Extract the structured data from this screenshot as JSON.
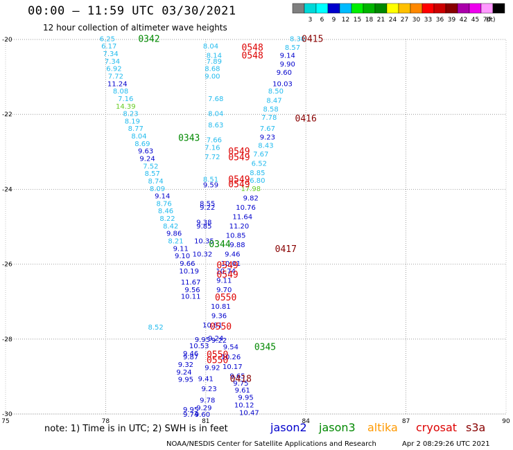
{
  "header": {
    "title": "00:00 – 11:59 UTC 03/30/2021",
    "subtitle": "12 hour collection of altimeter wave heights"
  },
  "footer": {
    "note": "note: 1) Time is in UTC; 2) SWH is in feet",
    "credit": "NOAA/NESDIS Center for Satellite Applications and Research",
    "generated": "Apr  2 08:29:26 UTC 2021"
  },
  "legend_scale": {
    "colors": [
      "#7f7f7f",
      "#00d8d8",
      "#00ffff",
      "#0000cc",
      "#00bbff",
      "#00ee00",
      "#00b400",
      "#008800",
      "#ffff00",
      "#ffc000",
      "#ff8800",
      "#ff0000",
      "#cc0000",
      "#880000",
      "#aa00aa",
      "#ee00ee",
      "#ff99ff",
      "#000000"
    ],
    "labels": [
      "3",
      "6",
      "9",
      "12",
      "15",
      "18",
      "21",
      "24",
      "27",
      "30",
      "33",
      "36",
      "39",
      "42",
      "45",
      "70"
    ],
    "unit": "(ft)"
  },
  "satellites": [
    {
      "name": "jason2",
      "color": "#0000cc"
    },
    {
      "name": "jason3",
      "color": "#008800"
    },
    {
      "name": "altika",
      "color": "#ff9900"
    },
    {
      "name": "cryosat",
      "color": "#dd0000"
    },
    {
      "name": "s3a",
      "color": "#880000"
    }
  ],
  "chart_data": {
    "type": "scatter",
    "title": "00:00 – 11:59 UTC 03/30/2021",
    "subtitle": "12 hour collection of altimeter wave heights",
    "x_ticks": [
      75,
      78,
      81,
      84,
      87,
      90
    ],
    "y_ticks": [
      -20,
      -22,
      -24,
      -26,
      -28,
      -30
    ],
    "xlim": [
      75,
      90
    ],
    "ylim": [
      -30,
      -20
    ],
    "grid": "dotted",
    "legend": "colored satellite names along bottom",
    "colors": {
      "jason2": "#0000cc",
      "jason3": "#008800",
      "altika": "#ff9900",
      "cryosat": "#dd0000",
      "s3a": "#880000",
      "swh_light": "#00aacc",
      "swh_mid": "#22bbee",
      "swh_green": "#66cc22"
    },
    "pass_labels": [
      {
        "text": "0342",
        "lon": 79.3,
        "lat": -19.97,
        "sat": "jason3"
      },
      {
        "text": "0343",
        "lon": 80.5,
        "lat": -22.62,
        "sat": "jason3"
      },
      {
        "text": "0344",
        "lon": 81.42,
        "lat": -25.45,
        "sat": "jason3"
      },
      {
        "text": "0345",
        "lon": 82.78,
        "lat": -28.2,
        "sat": "jason3"
      },
      {
        "text": "0415",
        "lon": 84.2,
        "lat": -19.97,
        "sat": "s3a"
      },
      {
        "text": "0416",
        "lon": 84.0,
        "lat": -22.1,
        "sat": "s3a"
      },
      {
        "text": "0417",
        "lon": 83.4,
        "lat": -25.58,
        "sat": "s3a"
      },
      {
        "text": "0418",
        "lon": 82.05,
        "lat": -29.05,
        "sat": "s3a"
      },
      {
        "text": "0548",
        "lon": 82.4,
        "lat": -20.2,
        "sat": "cryosat"
      },
      {
        "text": "0548",
        "lon": 82.4,
        "lat": -20.42,
        "sat": "cryosat"
      },
      {
        "text": "0549",
        "lon": 82.0,
        "lat": -22.98,
        "sat": "cryosat"
      },
      {
        "text": "0549",
        "lon": 82.0,
        "lat": -23.13,
        "sat": "cryosat"
      },
      {
        "text": "0549",
        "lon": 82.0,
        "lat": -23.72,
        "sat": "cryosat"
      },
      {
        "text": "0549",
        "lon": 82.0,
        "lat": -23.85,
        "sat": "cryosat"
      },
      {
        "text": "0549",
        "lon": 81.65,
        "lat": -26.02,
        "sat": "cryosat"
      },
      {
        "text": "0549",
        "lon": 81.65,
        "lat": -26.27,
        "sat": "cryosat"
      },
      {
        "text": "0550",
        "lon": 81.6,
        "lat": -26.88,
        "sat": "cryosat"
      },
      {
        "text": "0550",
        "lon": 81.45,
        "lat": -27.65,
        "sat": "cryosat"
      },
      {
        "text": "0550",
        "lon": 81.35,
        "lat": -28.4,
        "sat": "cryosat"
      },
      {
        "text": "0550",
        "lon": 81.35,
        "lat": -28.55,
        "sat": "cryosat"
      }
    ],
    "swh_points": [
      {
        "v": "6.25",
        "lon": 78.05,
        "lat": -19.97,
        "c": "swh_mid"
      },
      {
        "v": "6.17",
        "lon": 78.1,
        "lat": -20.17,
        "c": "swh_mid"
      },
      {
        "v": "7.34",
        "lon": 78.15,
        "lat": -20.37,
        "c": "swh_mid"
      },
      {
        "v": "7.34",
        "lon": 78.2,
        "lat": -20.57,
        "c": "swh_mid"
      },
      {
        "v": "6.92",
        "lon": 78.25,
        "lat": -20.77,
        "c": "swh_mid"
      },
      {
        "v": "7.72",
        "lon": 78.3,
        "lat": -20.97,
        "c": "swh_mid"
      },
      {
        "v": "11.24",
        "lon": 78.35,
        "lat": -21.17,
        "c": "jason2"
      },
      {
        "v": "8.08",
        "lon": 78.45,
        "lat": -21.37,
        "c": "swh_mid"
      },
      {
        "v": "7.16",
        "lon": 78.6,
        "lat": -21.57,
        "c": "swh_mid"
      },
      {
        "v": "14.39",
        "lon": 78.6,
        "lat": -21.77,
        "c": "swh_green"
      },
      {
        "v": "8.23",
        "lon": 78.75,
        "lat": -21.97,
        "c": "swh_mid"
      },
      {
        "v": "8.19",
        "lon": 78.8,
        "lat": -22.17,
        "c": "swh_mid"
      },
      {
        "v": "8.77",
        "lon": 78.9,
        "lat": -22.37,
        "c": "swh_mid"
      },
      {
        "v": "8.04",
        "lon": 79.0,
        "lat": -22.57,
        "c": "swh_mid"
      },
      {
        "v": "8.69",
        "lon": 79.1,
        "lat": -22.77,
        "c": "swh_mid"
      },
      {
        "v": "9.63",
        "lon": 79.2,
        "lat": -22.97,
        "c": "jason2"
      },
      {
        "v": "9.24",
        "lon": 79.25,
        "lat": -23.17,
        "c": "jason2"
      },
      {
        "v": "7.52",
        "lon": 79.35,
        "lat": -23.37,
        "c": "swh_mid"
      },
      {
        "v": "8.57",
        "lon": 79.4,
        "lat": -23.57,
        "c": "swh_mid"
      },
      {
        "v": "8.74",
        "lon": 79.5,
        "lat": -23.77,
        "c": "swh_mid"
      },
      {
        "v": "8.09",
        "lon": 79.55,
        "lat": -23.97,
        "c": "swh_mid"
      },
      {
        "v": "9.14",
        "lon": 79.7,
        "lat": -24.17,
        "c": "jason2"
      },
      {
        "v": "8.76",
        "lon": 79.75,
        "lat": -24.37,
        "c": "swh_mid"
      },
      {
        "v": "8.46",
        "lon": 79.8,
        "lat": -24.57,
        "c": "swh_mid"
      },
      {
        "v": "8.22",
        "lon": 79.85,
        "lat": -24.77,
        "c": "swh_mid"
      },
      {
        "v": "8.42",
        "lon": 79.95,
        "lat": -24.97,
        "c": "swh_mid"
      },
      {
        "v": "9.86",
        "lon": 80.05,
        "lat": -25.17,
        "c": "jason2"
      },
      {
        "v": "8.21",
        "lon": 80.1,
        "lat": -25.37,
        "c": "swh_mid"
      },
      {
        "v": "9.11",
        "lon": 80.25,
        "lat": -25.57,
        "c": "jason2"
      },
      {
        "v": "9.10",
        "lon": 80.3,
        "lat": -25.77,
        "c": "jason2"
      },
      {
        "v": "9.66",
        "lon": 80.45,
        "lat": -25.97,
        "c": "jason2"
      },
      {
        "v": "10.19",
        "lon": 80.5,
        "lat": -26.17,
        "c": "jason2"
      },
      {
        "v": "11.67",
        "lon": 80.55,
        "lat": -26.47,
        "c": "jason2"
      },
      {
        "v": "9.56",
        "lon": 80.6,
        "lat": -26.67,
        "c": "jason2"
      },
      {
        "v": "10.11",
        "lon": 80.55,
        "lat": -26.85,
        "c": "jason2"
      },
      {
        "v": "8.04",
        "lon": 81.15,
        "lat": -20.17,
        "c": "swh_mid"
      },
      {
        "v": "8.14",
        "lon": 81.25,
        "lat": -20.42,
        "c": "swh_mid"
      },
      {
        "v": "7.89",
        "lon": 81.25,
        "lat": -20.57,
        "c": "swh_mid"
      },
      {
        "v": "8.68",
        "lon": 81.2,
        "lat": -20.77,
        "c": "swh_mid"
      },
      {
        "v": "9.00",
        "lon": 81.2,
        "lat": -20.97,
        "c": "swh_mid"
      },
      {
        "v": "7.68",
        "lon": 81.3,
        "lat": -21.57,
        "c": "swh_mid"
      },
      {
        "v": "8.04",
        "lon": 81.3,
        "lat": -21.97,
        "c": "swh_mid"
      },
      {
        "v": "8.63",
        "lon": 81.3,
        "lat": -22.27,
        "c": "swh_mid"
      },
      {
        "v": "7.66",
        "lon": 81.25,
        "lat": -22.67,
        "c": "swh_mid"
      },
      {
        "v": "7.16",
        "lon": 81.2,
        "lat": -22.87,
        "c": "swh_mid"
      },
      {
        "v": "7.72",
        "lon": 81.2,
        "lat": -23.12,
        "c": "swh_mid"
      },
      {
        "v": "8.51",
        "lon": 81.15,
        "lat": -23.72,
        "c": "swh_mid"
      },
      {
        "v": "9.59",
        "lon": 81.15,
        "lat": -23.87,
        "c": "jason2"
      },
      {
        "v": "8.55",
        "lon": 81.05,
        "lat": -24.37,
        "c": "jason2"
      },
      {
        "v": "9.22",
        "lon": 81.05,
        "lat": -24.47,
        "c": "jason2"
      },
      {
        "v": "9.38",
        "lon": 80.95,
        "lat": -24.87,
        "c": "jason2"
      },
      {
        "v": "9.85",
        "lon": 80.95,
        "lat": -24.97,
        "c": "jason2"
      },
      {
        "v": "10.35",
        "lon": 80.95,
        "lat": -25.37,
        "c": "jason2"
      },
      {
        "v": "10.32",
        "lon": 80.9,
        "lat": -25.72,
        "c": "jason2"
      },
      {
        "v": "8.52",
        "lon": 79.5,
        "lat": -27.67,
        "c": "swh_mid"
      },
      {
        "v": "9.95",
        "lon": 80.9,
        "lat": -28.0,
        "c": "jason2"
      },
      {
        "v": "10.53",
        "lon": 80.8,
        "lat": -28.17,
        "c": "jason2"
      },
      {
        "v": "9.46",
        "lon": 80.55,
        "lat": -28.37,
        "c": "jason2"
      },
      {
        "v": "9.87",
        "lon": 80.55,
        "lat": -28.47,
        "c": "jason2"
      },
      {
        "v": "9.32",
        "lon": 80.4,
        "lat": -28.67,
        "c": "jason2"
      },
      {
        "v": "9.24",
        "lon": 80.35,
        "lat": -28.87,
        "c": "jason2"
      },
      {
        "v": "9.95",
        "lon": 80.4,
        "lat": -29.07,
        "c": "jason2"
      },
      {
        "v": "9.41",
        "lon": 81.0,
        "lat": -29.05,
        "c": "jason2"
      },
      {
        "v": "9.92",
        "lon": 81.2,
        "lat": -28.75,
        "c": "jason2"
      },
      {
        "v": "9.23",
        "lon": 81.1,
        "lat": -29.32,
        "c": "jason2"
      },
      {
        "v": "9.78",
        "lon": 81.05,
        "lat": -29.62,
        "c": "jason2"
      },
      {
        "v": "9.29",
        "lon": 80.95,
        "lat": -29.82,
        "c": "jason2"
      },
      {
        "v": "9.95",
        "lon": 80.55,
        "lat": -29.87,
        "c": "jason2"
      },
      {
        "v": "9.74",
        "lon": 80.55,
        "lat": -30.0,
        "c": "jason2"
      },
      {
        "v": "9.60",
        "lon": 80.9,
        "lat": -30.0,
        "c": "jason2"
      },
      {
        "v": "8.30",
        "lon": 83.75,
        "lat": -19.97,
        "c": "swh_mid"
      },
      {
        "v": "8.57",
        "lon": 83.6,
        "lat": -20.2,
        "c": "swh_mid"
      },
      {
        "v": "9.14",
        "lon": 83.45,
        "lat": -20.42,
        "c": "jason2"
      },
      {
        "v": "9.90",
        "lon": 83.45,
        "lat": -20.65,
        "c": "jason2"
      },
      {
        "v": "9.60",
        "lon": 83.35,
        "lat": -20.87,
        "c": "jason2"
      },
      {
        "v": "10.03",
        "lon": 83.3,
        "lat": -21.17,
        "c": "jason2"
      },
      {
        "v": "8.50",
        "lon": 83.1,
        "lat": -21.37,
        "c": "swh_mid"
      },
      {
        "v": "8.47",
        "lon": 83.05,
        "lat": -21.62,
        "c": "swh_mid"
      },
      {
        "v": "8.58",
        "lon": 82.95,
        "lat": -21.85,
        "c": "swh_mid"
      },
      {
        "v": "7.78",
        "lon": 82.9,
        "lat": -22.07,
        "c": "swh_mid"
      },
      {
        "v": "7.67",
        "lon": 82.85,
        "lat": -22.37,
        "c": "swh_mid"
      },
      {
        "v": "9.23",
        "lon": 82.85,
        "lat": -22.6,
        "c": "jason2"
      },
      {
        "v": "8.43",
        "lon": 82.8,
        "lat": -22.82,
        "c": "swh_mid"
      },
      {
        "v": "7.67",
        "lon": 82.65,
        "lat": -23.05,
        "c": "swh_mid"
      },
      {
        "v": "6.52",
        "lon": 82.6,
        "lat": -23.3,
        "c": "swh_mid"
      },
      {
        "v": "8.85",
        "lon": 82.55,
        "lat": -23.55,
        "c": "swh_mid"
      },
      {
        "v": "6.80",
        "lon": 82.55,
        "lat": -23.75,
        "c": "swh_mid"
      },
      {
        "v": "17.98",
        "lon": 82.35,
        "lat": -23.97,
        "c": "swh_green"
      },
      {
        "v": "9.82",
        "lon": 82.35,
        "lat": -24.22,
        "c": "jason2"
      },
      {
        "v": "10.76",
        "lon": 82.2,
        "lat": -24.47,
        "c": "jason2"
      },
      {
        "v": "11.64",
        "lon": 82.1,
        "lat": -24.72,
        "c": "jason2"
      },
      {
        "v": "11.20",
        "lon": 82.0,
        "lat": -24.97,
        "c": "jason2"
      },
      {
        "v": "10.85",
        "lon": 81.9,
        "lat": -25.22,
        "c": "jason2"
      },
      {
        "v": "9.88",
        "lon": 81.95,
        "lat": -25.47,
        "c": "jason2"
      },
      {
        "v": "9.46",
        "lon": 81.8,
        "lat": -25.72,
        "c": "jason2"
      },
      {
        "v": "10.01",
        "lon": 81.75,
        "lat": -25.97,
        "c": "jason2"
      },
      {
        "v": "10.74",
        "lon": 81.6,
        "lat": -26.17,
        "c": "jason2"
      },
      {
        "v": "9.11",
        "lon": 81.55,
        "lat": -26.42,
        "c": "jason2"
      },
      {
        "v": "9.70",
        "lon": 81.55,
        "lat": -26.67,
        "c": "jason2"
      },
      {
        "v": "10.81",
        "lon": 81.45,
        "lat": -27.12,
        "c": "jason2"
      },
      {
        "v": "9.36",
        "lon": 81.4,
        "lat": -27.37,
        "c": "jason2"
      },
      {
        "v": "10.81",
        "lon": 81.2,
        "lat": -27.62,
        "c": "jason2"
      },
      {
        "v": "9.24",
        "lon": 81.3,
        "lat": -27.97,
        "c": "jason2"
      },
      {
        "v": "9.22",
        "lon": 81.4,
        "lat": -28.02,
        "c": "jason2"
      },
      {
        "v": "9.54",
        "lon": 81.75,
        "lat": -28.2,
        "c": "jason2"
      },
      {
        "v": "10.26",
        "lon": 81.75,
        "lat": -28.47,
        "c": "jason2"
      },
      {
        "v": "10.17",
        "lon": 81.8,
        "lat": -28.72,
        "c": "jason2"
      },
      {
        "v": "9.65",
        "lon": 81.95,
        "lat": -28.97,
        "c": "jason2"
      },
      {
        "v": "9.75",
        "lon": 82.05,
        "lat": -29.17,
        "c": "jason2"
      },
      {
        "v": "9.61",
        "lon": 82.1,
        "lat": -29.35,
        "c": "jason2"
      },
      {
        "v": "9.95",
        "lon": 82.2,
        "lat": -29.55,
        "c": "jason2"
      },
      {
        "v": "10.12",
        "lon": 82.15,
        "lat": -29.75,
        "c": "jason2"
      },
      {
        "v": "10.47",
        "lon": 82.3,
        "lat": -29.95,
        "c": "jason2"
      }
    ]
  }
}
